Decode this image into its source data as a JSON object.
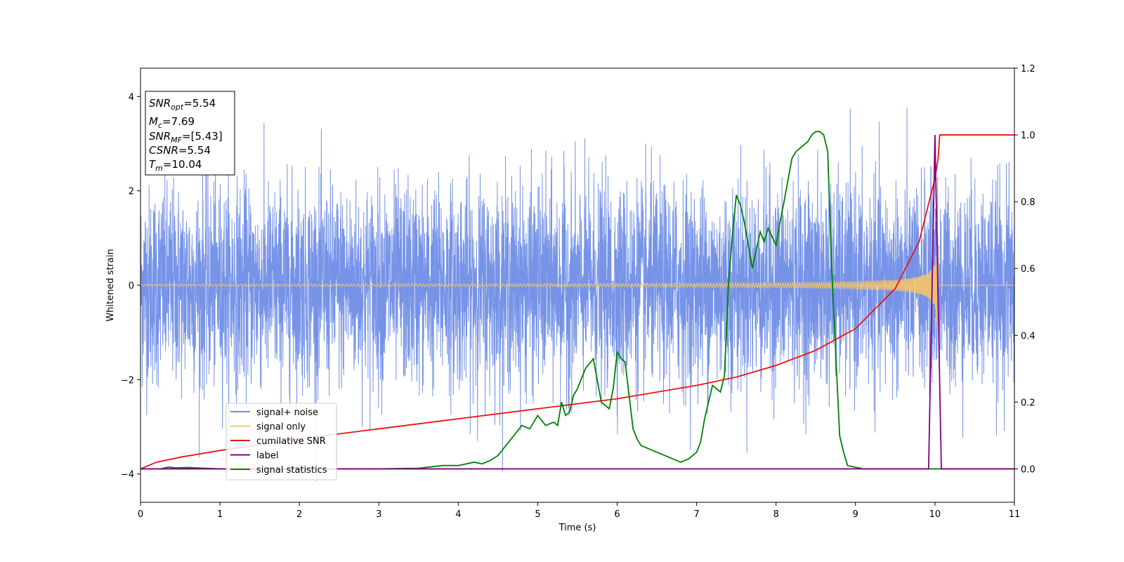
{
  "chart_data": {
    "type": "line",
    "xlabel": "Time (s)",
    "ylabel": "Whitened strain",
    "xlim": [
      0,
      11
    ],
    "ylim_left": [
      -4.6,
      4.6
    ],
    "ylim_right": [
      -0.1,
      1.2
    ],
    "xticks": [
      "0",
      "1",
      "2",
      "3",
      "4",
      "5",
      "6",
      "7",
      "8",
      "9",
      "10",
      "11"
    ],
    "yticks_left": [
      "−4",
      "−2",
      "0",
      "2",
      "4"
    ],
    "yticks_right": [
      "0.0",
      "0.2",
      "0.4",
      "0.6",
      "0.8",
      "1.0",
      "1.2"
    ],
    "legend_position": "lower-left",
    "annotation": {
      "snr_opt": {
        "base": "SNR",
        "sub": "opt",
        "value": "=5.54"
      },
      "mc": {
        "base": "M",
        "sub": "c",
        "value": "=7.69"
      },
      "snr_mf": {
        "base": "SNR",
        "sub": "MF",
        "value": "=[5.43]"
      },
      "csnr": {
        "base": "CSNR",
        "value": "=5.54"
      },
      "tm": {
        "base": "T",
        "sub": "m",
        "value": "=10.04"
      }
    },
    "series": [
      {
        "name": "signal+ noise",
        "axis": "left",
        "color": "#6f8de6",
        "kind": "noise",
        "sigma": 1.0,
        "peak": 4.15
      },
      {
        "name": "signal only",
        "axis": "left",
        "color": "#f5c46a",
        "kind": "chirp",
        "amplitude_start": 0.02,
        "amplitude_end": 0.9,
        "t_merge": 10.04
      },
      {
        "name": "cumilative SNR",
        "axis": "right",
        "x": [
          0,
          0.2,
          0.5,
          1,
          2,
          3,
          4,
          5,
          6,
          7,
          7.5,
          8,
          8.5,
          9,
          9.5,
          9.8,
          10,
          10.04,
          10.06,
          11
        ],
        "y": [
          0,
          0.02,
          0.035,
          0.055,
          0.09,
          0.12,
          0.15,
          0.18,
          0.21,
          0.25,
          0.275,
          0.31,
          0.355,
          0.42,
          0.54,
          0.68,
          0.87,
          0.93,
          1.0,
          1.0
        ],
        "color": "#ee1111"
      },
      {
        "name": "label",
        "axis": "right",
        "x": [
          0,
          9.92,
          10.0,
          10.08,
          11
        ],
        "y": [
          0,
          0,
          1.0,
          0,
          0
        ],
        "color": "#800080"
      },
      {
        "name": "signal statistics",
        "axis": "right",
        "x": [
          0,
          0.25,
          0.35,
          0.45,
          0.6,
          0.8,
          1.0,
          1.5,
          2,
          2.5,
          3,
          3.5,
          3.8,
          4.0,
          4.2,
          4.3,
          4.4,
          4.5,
          4.6,
          4.7,
          4.8,
          4.9,
          5.0,
          5.1,
          5.2,
          5.25,
          5.3,
          5.35,
          5.4,
          5.45,
          5.5,
          5.6,
          5.7,
          5.8,
          5.85,
          5.9,
          5.95,
          6.0,
          6.05,
          6.1,
          6.2,
          6.25,
          6.3,
          6.4,
          6.5,
          6.6,
          6.7,
          6.8,
          6.9,
          7.0,
          7.05,
          7.1,
          7.2,
          7.3,
          7.35,
          7.4,
          7.45,
          7.5,
          7.55,
          7.6,
          7.7,
          7.8,
          7.85,
          7.9,
          8.0,
          8.05,
          8.1,
          8.2,
          8.25,
          8.3,
          8.35,
          8.4,
          8.45,
          8.5,
          8.55,
          8.6,
          8.65,
          8.7,
          8.75,
          8.8,
          8.85,
          8.9,
          9.0,
          9.1,
          9.2,
          11
        ],
        "y": [
          0,
          0,
          0.005,
          0.003,
          0.004,
          0.002,
          0,
          0,
          0,
          0,
          0,
          0.002,
          0.01,
          0.01,
          0.02,
          0.015,
          0.025,
          0.04,
          0.07,
          0.1,
          0.13,
          0.12,
          0.16,
          0.13,
          0.14,
          0.13,
          0.2,
          0.16,
          0.17,
          0.22,
          0.24,
          0.3,
          0.33,
          0.2,
          0.19,
          0.18,
          0.24,
          0.35,
          0.33,
          0.32,
          0.12,
          0.09,
          0.07,
          0.06,
          0.05,
          0.04,
          0.03,
          0.02,
          0.03,
          0.05,
          0.08,
          0.15,
          0.25,
          0.23,
          0.28,
          0.55,
          0.7,
          0.82,
          0.79,
          0.74,
          0.6,
          0.71,
          0.68,
          0.72,
          0.67,
          0.74,
          0.8,
          0.93,
          0.95,
          0.96,
          0.97,
          0.98,
          1.0,
          1.01,
          1.01,
          1.0,
          0.95,
          0.6,
          0.35,
          0.1,
          0.05,
          0.01,
          0.005,
          0.0,
          0.0,
          0.0
        ],
        "color": "#008000"
      }
    ]
  }
}
